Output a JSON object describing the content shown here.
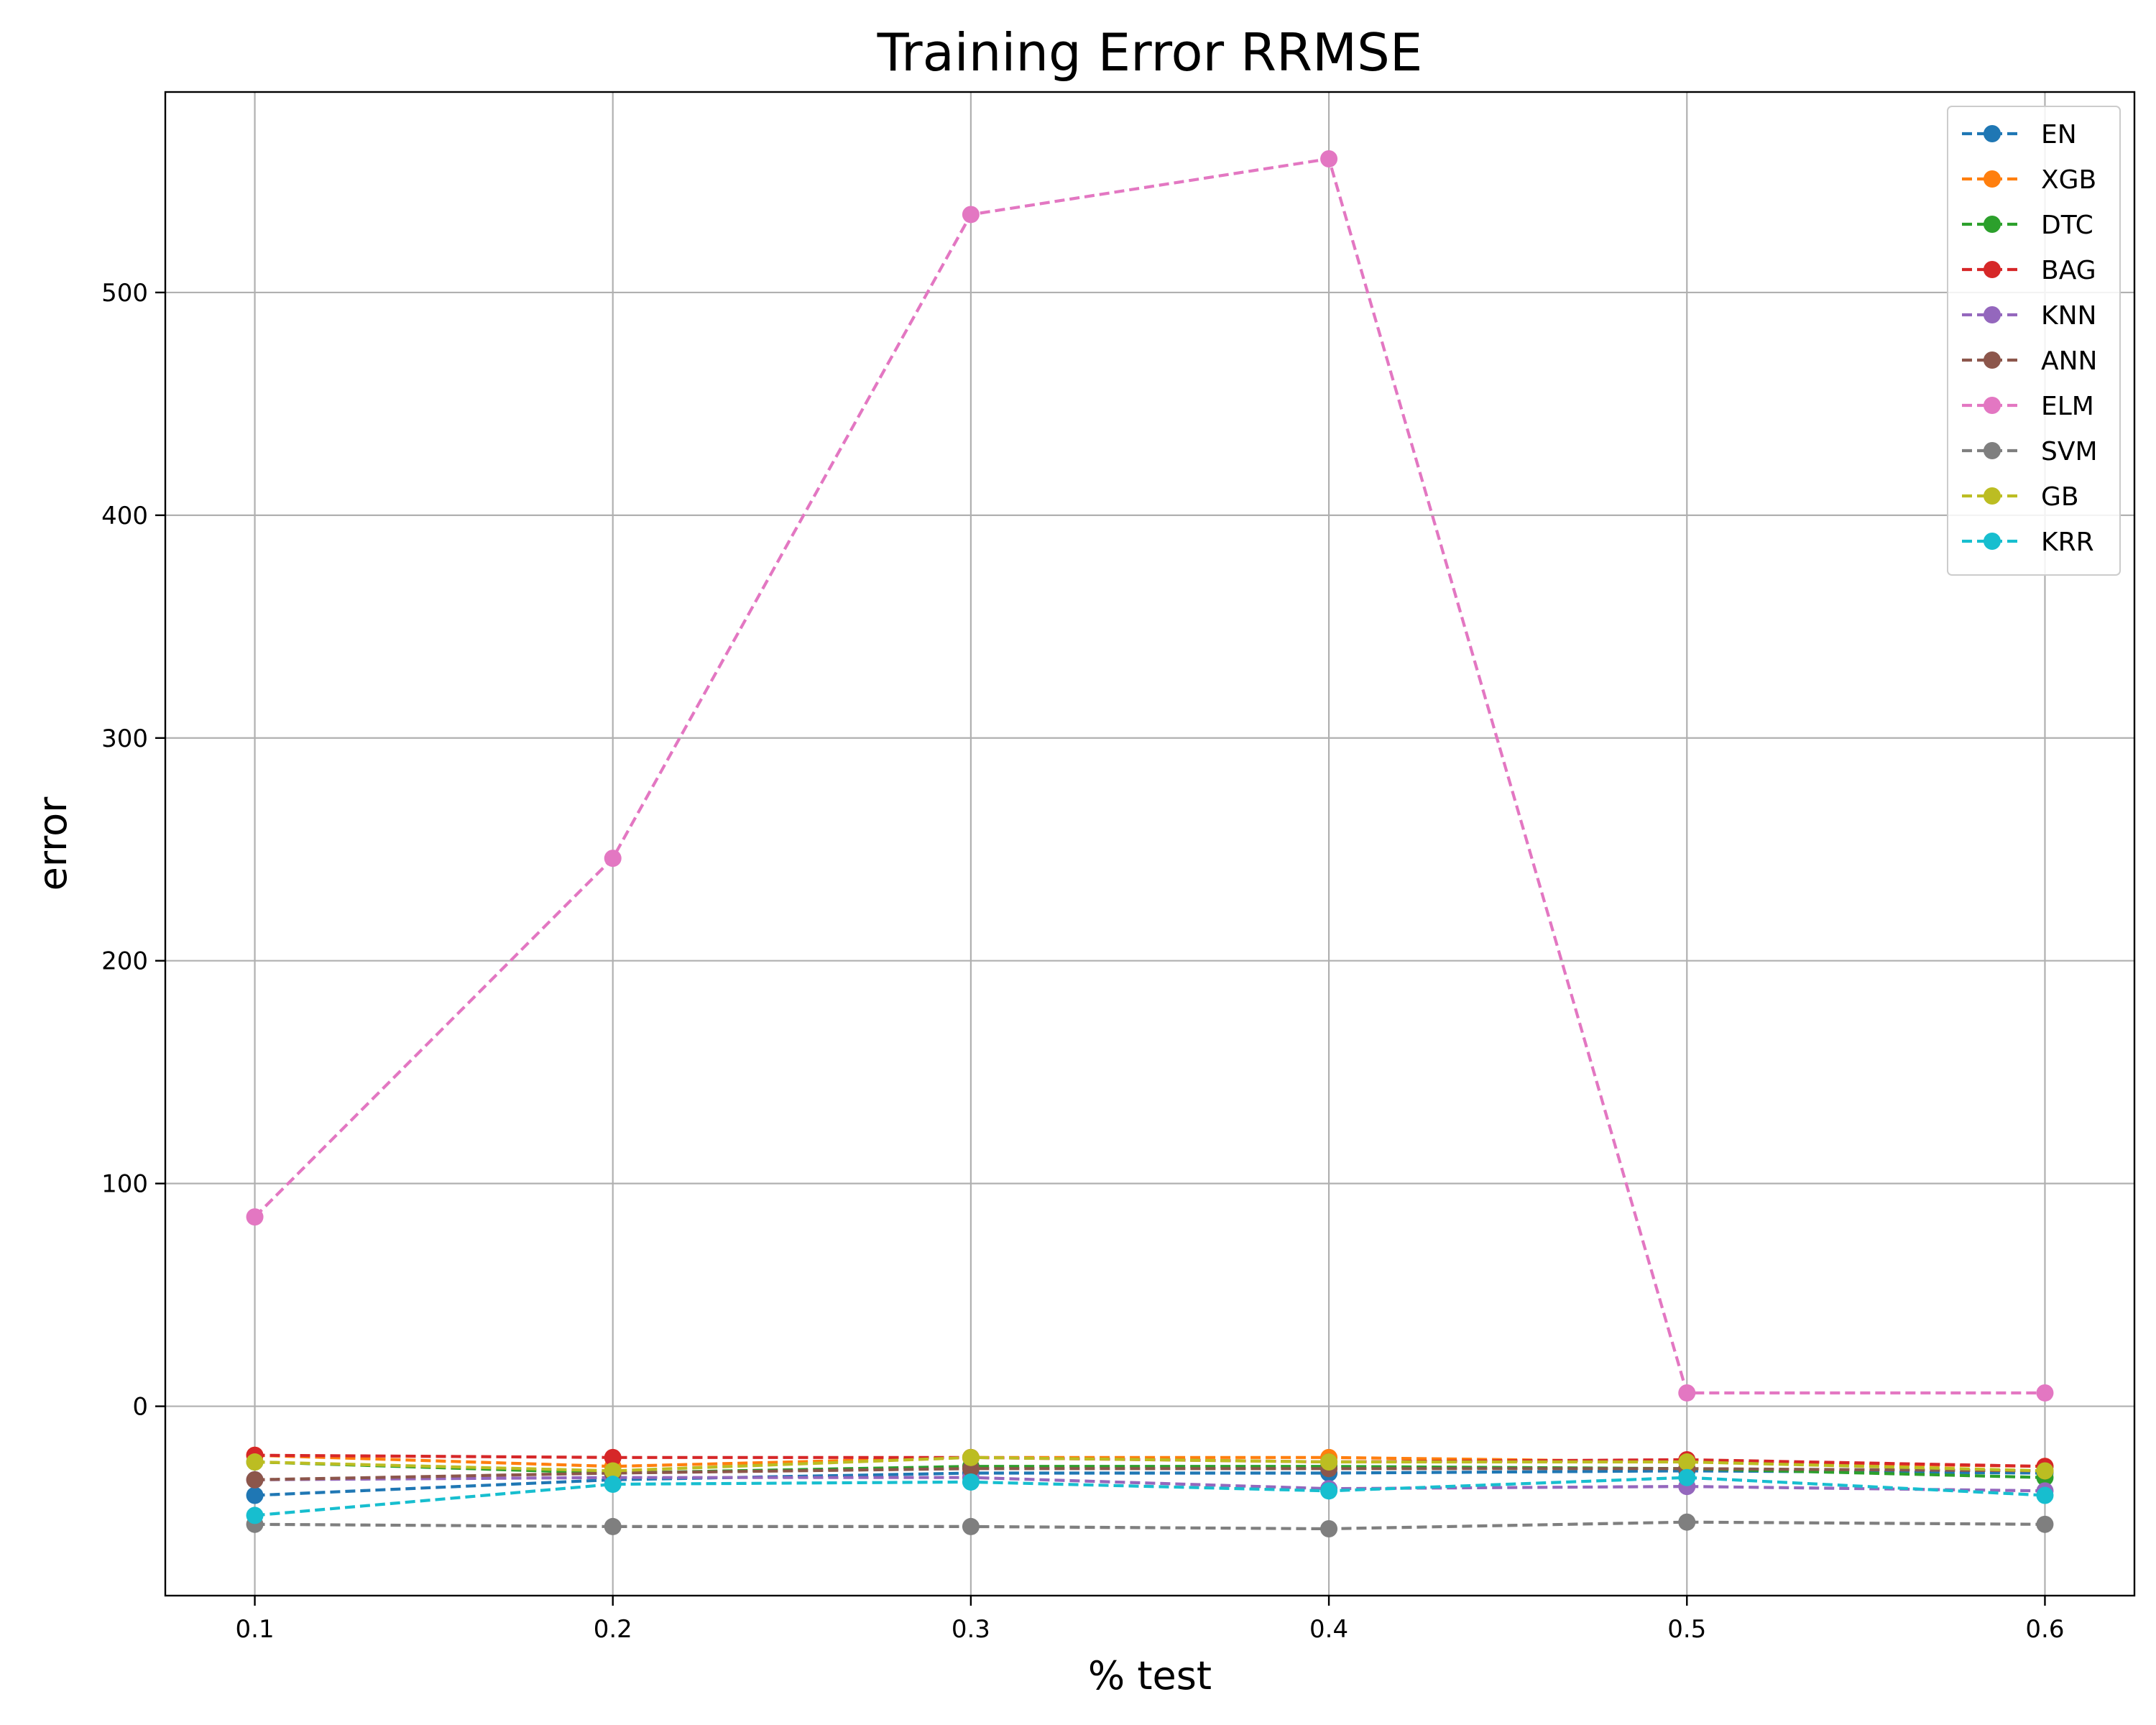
{
  "chart_data": {
    "type": "line",
    "title": "Training Error RRMSE",
    "xlabel": "% test",
    "ylabel": "error",
    "x": [
      0.1,
      0.2,
      0.3,
      0.4,
      0.5,
      0.6
    ],
    "x_tick_labels": [
      "0.1",
      "0.2",
      "0.3",
      "0.4",
      "0.5",
      "0.6"
    ],
    "y_ticks": [
      0,
      100,
      200,
      300,
      400,
      500
    ],
    "y_tick_labels": [
      "0",
      "100",
      "200",
      "300",
      "400",
      "500"
    ],
    "xlim": [
      0.075,
      0.625
    ],
    "ylim": [
      -85,
      590
    ],
    "grid": true,
    "legend_position": "top-right",
    "line_style": "dashed",
    "marker": "circle",
    "series": [
      {
        "name": "EN",
        "color": "#1f77b4",
        "values": [
          -40,
          -33,
          -30,
          -30,
          -29,
          -30
        ]
      },
      {
        "name": "XGB",
        "color": "#ff7f0e",
        "values": [
          -22,
          -27,
          -23,
          -23,
          -25,
          -27
        ]
      },
      {
        "name": "DTC",
        "color": "#2ca02c",
        "values": [
          -25,
          -30,
          -27,
          -27,
          -28,
          -32
        ]
      },
      {
        "name": "BAG",
        "color": "#d62728",
        "values": [
          -22,
          -23,
          -23,
          -25,
          -24,
          -27
        ]
      },
      {
        "name": "KNN",
        "color": "#9467bd",
        "values": [
          -33,
          -32,
          -32,
          -37,
          -36,
          -38
        ]
      },
      {
        "name": "ANN",
        "color": "#8c564b",
        "values": [
          -33,
          -30,
          -28,
          -28,
          -28,
          -29
        ]
      },
      {
        "name": "ELM",
        "color": "#e377c2",
        "values": [
          85,
          246,
          535,
          560,
          6,
          6
        ]
      },
      {
        "name": "SVM",
        "color": "#7f7f7f",
        "values": [
          -53,
          -54,
          -54,
          -55,
          -52,
          -53
        ]
      },
      {
        "name": "GB",
        "color": "#bcbd22",
        "values": [
          -25,
          -29,
          -23,
          -25,
          -25,
          -29
        ]
      },
      {
        "name": "KRR",
        "color": "#17becf",
        "values": [
          -49,
          -35,
          -34,
          -38,
          -32,
          -40
        ]
      }
    ]
  }
}
